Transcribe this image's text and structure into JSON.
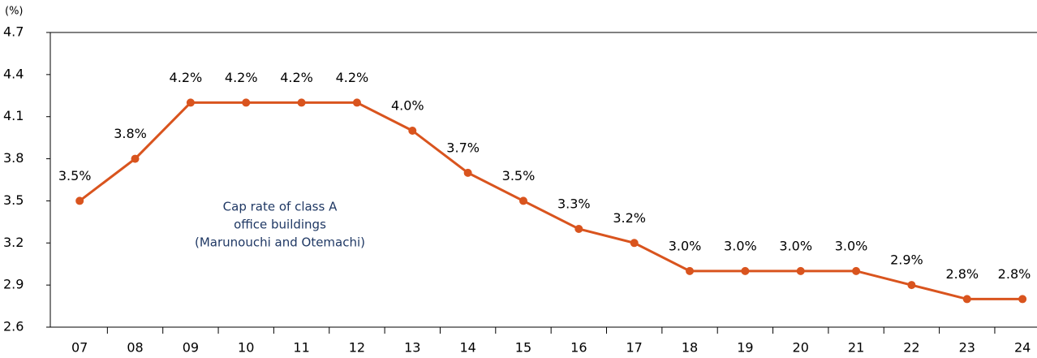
{
  "chart_data": {
    "type": "line",
    "y_label": "(%)",
    "annotation": [
      "Cap rate of class A",
      "office buildings",
      "(Marunouchi and Otemachi)"
    ],
    "categories": [
      "07",
      "08",
      "09",
      "10",
      "11",
      "12",
      "13",
      "14",
      "15",
      "16",
      "17",
      "18",
      "19",
      "20",
      "21",
      "22",
      "23",
      "24"
    ],
    "series": [
      {
        "name": null,
        "color": "#d9541e",
        "values": [
          3.5,
          3.8,
          4.2,
          4.2,
          4.2,
          4.2,
          4.0,
          3.7,
          3.5,
          3.3,
          3.2,
          3.0,
          3.0,
          3.0,
          3.0,
          2.9,
          2.8,
          2.8
        ],
        "value_labels": [
          "3.5%",
          "3.8%",
          "4.2%",
          "4.2%",
          "4.2%",
          "4.2%",
          "4.0%",
          "3.7%",
          "3.5%",
          "3.3%",
          "3.2%",
          "3.0%",
          "3.0%",
          "3.0%",
          "3.0%",
          "2.9%",
          "2.8%",
          "2.8%"
        ]
      }
    ],
    "ylim": [
      2.6,
      4.7
    ],
    "yticks": [
      2.6,
      2.9,
      3.2,
      3.5,
      3.8,
      4.1,
      4.4,
      4.7
    ]
  }
}
